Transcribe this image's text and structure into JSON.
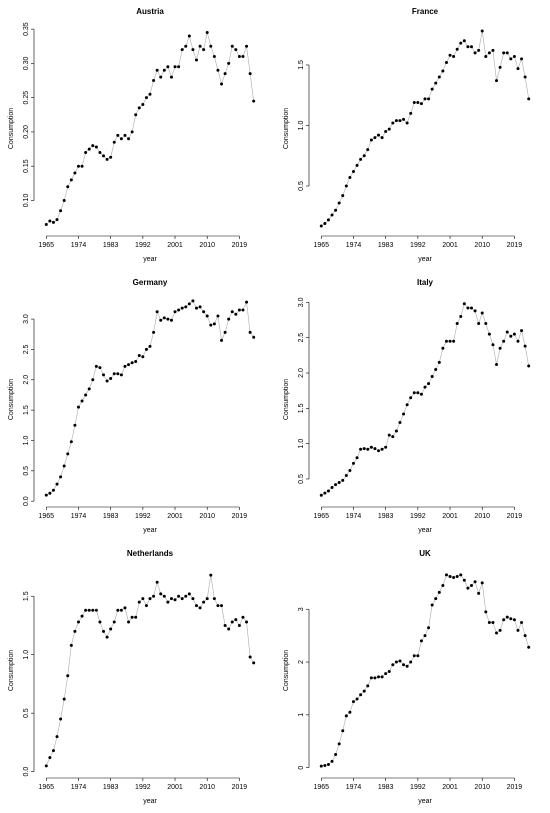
{
  "chart_data": [
    {
      "type": "line",
      "title": "Austria",
      "xlabel": "year",
      "ylabel": "Consumption",
      "color": "#000000",
      "x": [
        1965,
        1966,
        1967,
        1968,
        1969,
        1970,
        1971,
        1972,
        1973,
        1974,
        1975,
        1976,
        1977,
        1978,
        1979,
        1980,
        1981,
        1982,
        1983,
        1984,
        1985,
        1986,
        1987,
        1988,
        1989,
        1990,
        1991,
        1992,
        1993,
        1994,
        1995,
        1996,
        1997,
        1998,
        1999,
        2000,
        2001,
        2002,
        2003,
        2004,
        2005,
        2006,
        2007,
        2008,
        2009,
        2010,
        2011,
        2012,
        2013,
        2014,
        2015,
        2016,
        2017,
        2018,
        2019,
        2020,
        2021,
        2022,
        2023
      ],
      "values": [
        0.065,
        0.07,
        0.068,
        0.072,
        0.085,
        0.1,
        0.12,
        0.13,
        0.14,
        0.15,
        0.15,
        0.17,
        0.175,
        0.18,
        0.178,
        0.17,
        0.165,
        0.16,
        0.163,
        0.185,
        0.195,
        0.19,
        0.195,
        0.19,
        0.2,
        0.225,
        0.235,
        0.24,
        0.25,
        0.255,
        0.275,
        0.29,
        0.28,
        0.29,
        0.295,
        0.28,
        0.295,
        0.295,
        0.32,
        0.325,
        0.34,
        0.32,
        0.305,
        0.325,
        0.32,
        0.345,
        0.325,
        0.31,
        0.29,
        0.27,
        0.285,
        0.3,
        0.325,
        0.32,
        0.31,
        0.31,
        0.325,
        0.285,
        0.245
      ],
      "xlim": [
        1962.68,
        2025.32
      ],
      "xticks": [
        1965,
        1974,
        1983,
        1992,
        2001,
        2010,
        2019
      ],
      "ylim": [
        0.054,
        0.356
      ],
      "yticks": [
        {
          "value": 0.1,
          "label": "0.10"
        },
        0.15,
        {
          "value": 0.2,
          "label": "0.20"
        },
        0.25,
        {
          "value": 0.3,
          "label": "0.30"
        },
        0.35
      ]
    },
    {
      "type": "line",
      "title": "France",
      "xlabel": "year",
      "ylabel": "Consumption",
      "color": "#000000",
      "x": [
        1965,
        1966,
        1967,
        1968,
        1969,
        1970,
        1971,
        1972,
        1973,
        1974,
        1975,
        1976,
        1977,
        1978,
        1979,
        1980,
        1981,
        1982,
        1983,
        1984,
        1985,
        1986,
        1987,
        1988,
        1989,
        1990,
        1991,
        1992,
        1993,
        1994,
        1995,
        1996,
        1997,
        1998,
        1999,
        2000,
        2001,
        2002,
        2003,
        2004,
        2005,
        2006,
        2007,
        2008,
        2009,
        2010,
        2011,
        2012,
        2013,
        2014,
        2015,
        2016,
        2017,
        2018,
        2019,
        2020,
        2021,
        2022,
        2023
      ],
      "values": [
        0.17,
        0.19,
        0.22,
        0.26,
        0.3,
        0.36,
        0.42,
        0.5,
        0.57,
        0.62,
        0.67,
        0.72,
        0.75,
        0.8,
        0.88,
        0.9,
        0.92,
        0.9,
        0.95,
        0.97,
        1.02,
        1.04,
        1.04,
        1.05,
        1.02,
        1.1,
        1.19,
        1.19,
        1.18,
        1.22,
        1.22,
        1.3,
        1.35,
        1.4,
        1.45,
        1.52,
        1.58,
        1.57,
        1.63,
        1.68,
        1.7,
        1.65,
        1.65,
        1.6,
        1.62,
        1.78,
        1.57,
        1.6,
        1.62,
        1.37,
        1.48,
        1.6,
        1.6,
        1.55,
        1.57,
        1.47,
        1.55,
        1.4,
        1.22
      ],
      "xlim": [
        1962.68,
        2025.32
      ],
      "xticks": [
        1965,
        1974,
        1983,
        1992,
        2001,
        2010,
        2019
      ],
      "ylim": [
        0.12,
        1.83
      ],
      "yticks": [
        0.5,
        {
          "value": 1,
          "label": "1.0"
        },
        1.5
      ]
    },
    {
      "type": "line",
      "title": "Germany",
      "xlabel": "year",
      "ylabel": "Consumption",
      "color": "#000000",
      "x": [
        1965,
        1966,
        1967,
        1968,
        1969,
        1970,
        1971,
        1972,
        1973,
        1974,
        1975,
        1976,
        1977,
        1978,
        1979,
        1980,
        1981,
        1982,
        1983,
        1984,
        1985,
        1986,
        1987,
        1988,
        1989,
        1990,
        1991,
        1992,
        1993,
        1994,
        1995,
        1996,
        1997,
        1998,
        1999,
        2000,
        2001,
        2002,
        2003,
        2004,
        2005,
        2006,
        2007,
        2008,
        2009,
        2010,
        2011,
        2012,
        2013,
        2014,
        2015,
        2016,
        2017,
        2018,
        2019,
        2020,
        2021,
        2022,
        2023
      ],
      "values": [
        0.1,
        0.13,
        0.18,
        0.28,
        0.4,
        0.58,
        0.78,
        0.98,
        1.25,
        1.55,
        1.65,
        1.75,
        1.85,
        2.0,
        2.22,
        2.2,
        2.08,
        1.98,
        2.02,
        2.1,
        2.1,
        2.08,
        2.22,
        2.25,
        2.28,
        2.3,
        2.4,
        2.38,
        2.5,
        2.55,
        2.78,
        3.12,
        2.98,
        3.02,
        3.0,
        2.98,
        3.12,
        3.15,
        3.18,
        3.2,
        3.25,
        3.3,
        3.18,
        3.2,
        3.12,
        3.05,
        2.9,
        2.92,
        3.05,
        2.65,
        2.78,
        3.0,
        3.12,
        3.08,
        3.15,
        3.15,
        3.28,
        2.78,
        2.7
      ],
      "xlim": [
        1962.68,
        2025.32
      ],
      "xticks": [
        1965,
        1974,
        1983,
        1992,
        2001,
        2010,
        2019
      ],
      "ylim": [
        -0.03,
        3.38
      ],
      "yticks": [
        {
          "value": 0,
          "label": "0.0"
        },
        0.5,
        {
          "value": 1,
          "label": "1.0"
        },
        1.5,
        {
          "value": 2,
          "label": "2.0"
        },
        2.5,
        {
          "value": 3,
          "label": "3.0"
        }
      ]
    },
    {
      "type": "line",
      "title": "Italy",
      "xlabel": "year",
      "ylabel": "Consumption",
      "color": "#000000",
      "x": [
        1965,
        1966,
        1967,
        1968,
        1969,
        1970,
        1971,
        1972,
        1973,
        1974,
        1975,
        1976,
        1977,
        1978,
        1979,
        1980,
        1981,
        1982,
        1983,
        1984,
        1985,
        1986,
        1987,
        1988,
        1989,
        1990,
        1991,
        1992,
        1993,
        1994,
        1995,
        1996,
        1997,
        1998,
        1999,
        2000,
        2001,
        2002,
        2003,
        2004,
        2005,
        2006,
        2007,
        2008,
        2009,
        2010,
        2011,
        2012,
        2013,
        2014,
        2015,
        2016,
        2017,
        2018,
        2019,
        2020,
        2021,
        2022,
        2023
      ],
      "values": [
        0.27,
        0.3,
        0.33,
        0.38,
        0.42,
        0.45,
        0.48,
        0.55,
        0.62,
        0.72,
        0.8,
        0.92,
        0.93,
        0.92,
        0.95,
        0.93,
        0.9,
        0.92,
        0.95,
        1.12,
        1.1,
        1.18,
        1.3,
        1.42,
        1.55,
        1.65,
        1.72,
        1.72,
        1.7,
        1.8,
        1.85,
        1.95,
        2.05,
        2.15,
        2.35,
        2.45,
        2.45,
        2.45,
        2.7,
        2.8,
        2.98,
        2.92,
        2.92,
        2.88,
        2.7,
        2.85,
        2.7,
        2.55,
        2.4,
        2.12,
        2.35,
        2.45,
        2.58,
        2.52,
        2.55,
        2.45,
        2.6,
        2.38,
        2.1
      ],
      "xlim": [
        1962.68,
        2025.32
      ],
      "xticks": [
        1965,
        1974,
        1983,
        1992,
        2001,
        2010,
        2019
      ],
      "ylim": [
        0.16,
        3.09
      ],
      "yticks": [
        0.5,
        {
          "value": 1,
          "label": "1.0"
        },
        1.5,
        {
          "value": 2,
          "label": "2.0"
        },
        2.5,
        {
          "value": 3,
          "label": "3.0"
        }
      ]
    },
    {
      "type": "line",
      "title": "Netherlands",
      "xlabel": "year",
      "ylabel": "Consumption",
      "color": "#000000",
      "x": [
        1965,
        1966,
        1967,
        1968,
        1969,
        1970,
        1971,
        1972,
        1973,
        1974,
        1975,
        1976,
        1977,
        1978,
        1979,
        1980,
        1981,
        1982,
        1983,
        1984,
        1985,
        1986,
        1987,
        1988,
        1989,
        1990,
        1991,
        1992,
        1993,
        1994,
        1995,
        1996,
        1997,
        1998,
        1999,
        2000,
        2001,
        2002,
        2003,
        2004,
        2005,
        2006,
        2007,
        2008,
        2009,
        2010,
        2011,
        2012,
        2013,
        2014,
        2015,
        2016,
        2017,
        2018,
        2019,
        2020,
        2021,
        2022,
        2023
      ],
      "values": [
        0.05,
        0.12,
        0.18,
        0.3,
        0.45,
        0.62,
        0.82,
        1.08,
        1.2,
        1.28,
        1.33,
        1.38,
        1.38,
        1.38,
        1.38,
        1.28,
        1.2,
        1.15,
        1.22,
        1.28,
        1.38,
        1.38,
        1.4,
        1.28,
        1.32,
        1.32,
        1.45,
        1.48,
        1.42,
        1.48,
        1.5,
        1.62,
        1.52,
        1.5,
        1.45,
        1.48,
        1.47,
        1.5,
        1.48,
        1.5,
        1.52,
        1.48,
        1.42,
        1.4,
        1.45,
        1.48,
        1.68,
        1.48,
        1.42,
        1.42,
        1.25,
        1.22,
        1.28,
        1.3,
        1.25,
        1.32,
        1.28,
        0.98,
        0.93
      ],
      "xlim": [
        1962.68,
        2025.32
      ],
      "xticks": [
        1965,
        1974,
        1983,
        1992,
        2001,
        2010,
        2019
      ],
      "ylim": [
        -0.02,
        1.75
      ],
      "yticks": [
        {
          "value": 0,
          "label": "0.0"
        },
        0.5,
        {
          "value": 1,
          "label": "1.0"
        },
        1.5
      ]
    },
    {
      "type": "line",
      "title": "UK",
      "xlabel": "year",
      "ylabel": "Consumption",
      "color": "#000000",
      "x": [
        1965,
        1966,
        1967,
        1968,
        1969,
        1970,
        1971,
        1972,
        1973,
        1974,
        1975,
        1976,
        1977,
        1978,
        1979,
        1980,
        1981,
        1982,
        1983,
        1984,
        1985,
        1986,
        1987,
        1988,
        1989,
        1990,
        1991,
        1992,
        1993,
        1994,
        1995,
        1996,
        1997,
        1998,
        1999,
        2000,
        2001,
        2002,
        2003,
        2004,
        2005,
        2006,
        2007,
        2008,
        2009,
        2010,
        2011,
        2012,
        2013,
        2014,
        2015,
        2016,
        2017,
        2018,
        2019,
        2020,
        2021,
        2022,
        2023
      ],
      "values": [
        0.03,
        0.04,
        0.06,
        0.12,
        0.25,
        0.45,
        0.7,
        0.98,
        1.05,
        1.25,
        1.3,
        1.38,
        1.45,
        1.55,
        1.7,
        1.7,
        1.72,
        1.72,
        1.78,
        1.82,
        1.95,
        2.0,
        2.02,
        1.95,
        1.92,
        2.0,
        2.12,
        2.12,
        2.4,
        2.5,
        2.65,
        3.08,
        3.2,
        3.32,
        3.45,
        3.65,
        3.62,
        3.6,
        3.62,
        3.65,
        3.55,
        3.4,
        3.45,
        3.52,
        3.3,
        3.5,
        2.95,
        2.75,
        2.75,
        2.55,
        2.6,
        2.8,
        2.85,
        2.82,
        2.8,
        2.6,
        2.75,
        2.5,
        2.28
      ],
      "xlim": [
        1962.68,
        2025.32
      ],
      "xticks": [
        1965,
        1974,
        1983,
        1992,
        2001,
        2010,
        2019
      ],
      "ylim": [
        -0.12,
        3.8
      ],
      "yticks": [
        0,
        1,
        2,
        3
      ]
    }
  ]
}
